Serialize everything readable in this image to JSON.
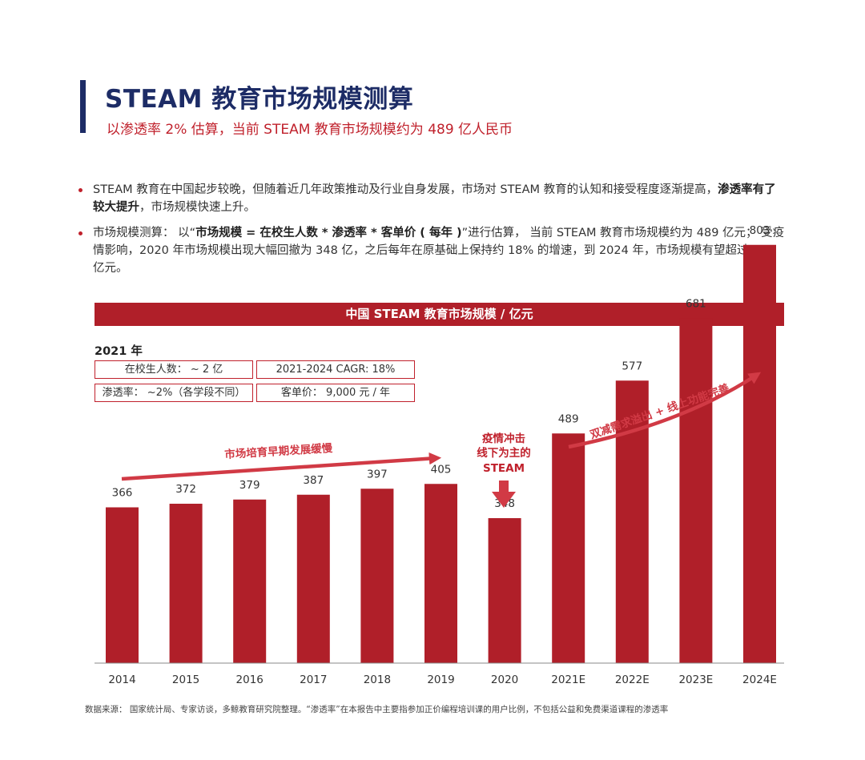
{
  "header": {
    "title": "STEAM 教育市场规模测算",
    "subtitle": "以渗透率 2% 估算，当前 STEAM 教育市场规模约为 489 亿人民币"
  },
  "bullets": [
    {
      "text_before": "STEAM 教育在中国起步较晚，但随着近几年政策推动及行业自身发展，市场对 STEAM 教育的认知和接受程度逐渐提高，",
      "bold": "渗透率有了较大提升",
      "text_after": "，市场规模快速上升。"
    },
    {
      "text_before": "市场规模测算： 以“",
      "bold": "市场规模 = 在校生人数 * 渗透率 * 客单价 ( 每年 )",
      "text_after": "”进行估算， 当前 STEAM 教育市场规模约为 489 亿元； 受疫情影响，2020 年市场规模出现大幅回撤为 348 亿，之后每年在原基础上保持约 18% 的增速，到 2024 年，市场规模有望超过 800 亿元。"
    }
  ],
  "info": {
    "year_label": "2021 年",
    "students": "在校生人数： ~ 2 亿",
    "cagr": "2021-2024 CAGR: 18%",
    "penetration": "渗透率： ~2%（各学段不同）",
    "unit_price": "客单价： 9,000 元 / 年"
  },
  "annotations": {
    "early": "市场培育早期发展缓慢",
    "covid": [
      "疫情冲击",
      "线下为主的",
      "STEAM"
    ],
    "growth": "双减需求溢出 + 线上功能完善"
  },
  "source": "数据来源： 国家统计局、专家访谈，多鲸教育研究院整理。“渗透率”在本报告中主要指参加正价编程培训课的用户比例，不包括公益和免费渠道课程的渗透率",
  "colors": {
    "bar": "#b01f29",
    "accent": "#c0212c",
    "title": "#1d2c66",
    "arrow": "#d13a45"
  },
  "chart_data": {
    "type": "bar",
    "title": "中国 STEAM 教育市场规模 / 亿元",
    "categories": [
      "2014",
      "2015",
      "2016",
      "2017",
      "2018",
      "2019",
      "2020",
      "2021E",
      "2022E",
      "2023E",
      "2024E"
    ],
    "values": [
      366,
      372,
      379,
      387,
      397,
      405,
      348,
      489,
      577,
      681,
      803
    ],
    "xlabel": "",
    "ylabel": "",
    "grid": false
  }
}
